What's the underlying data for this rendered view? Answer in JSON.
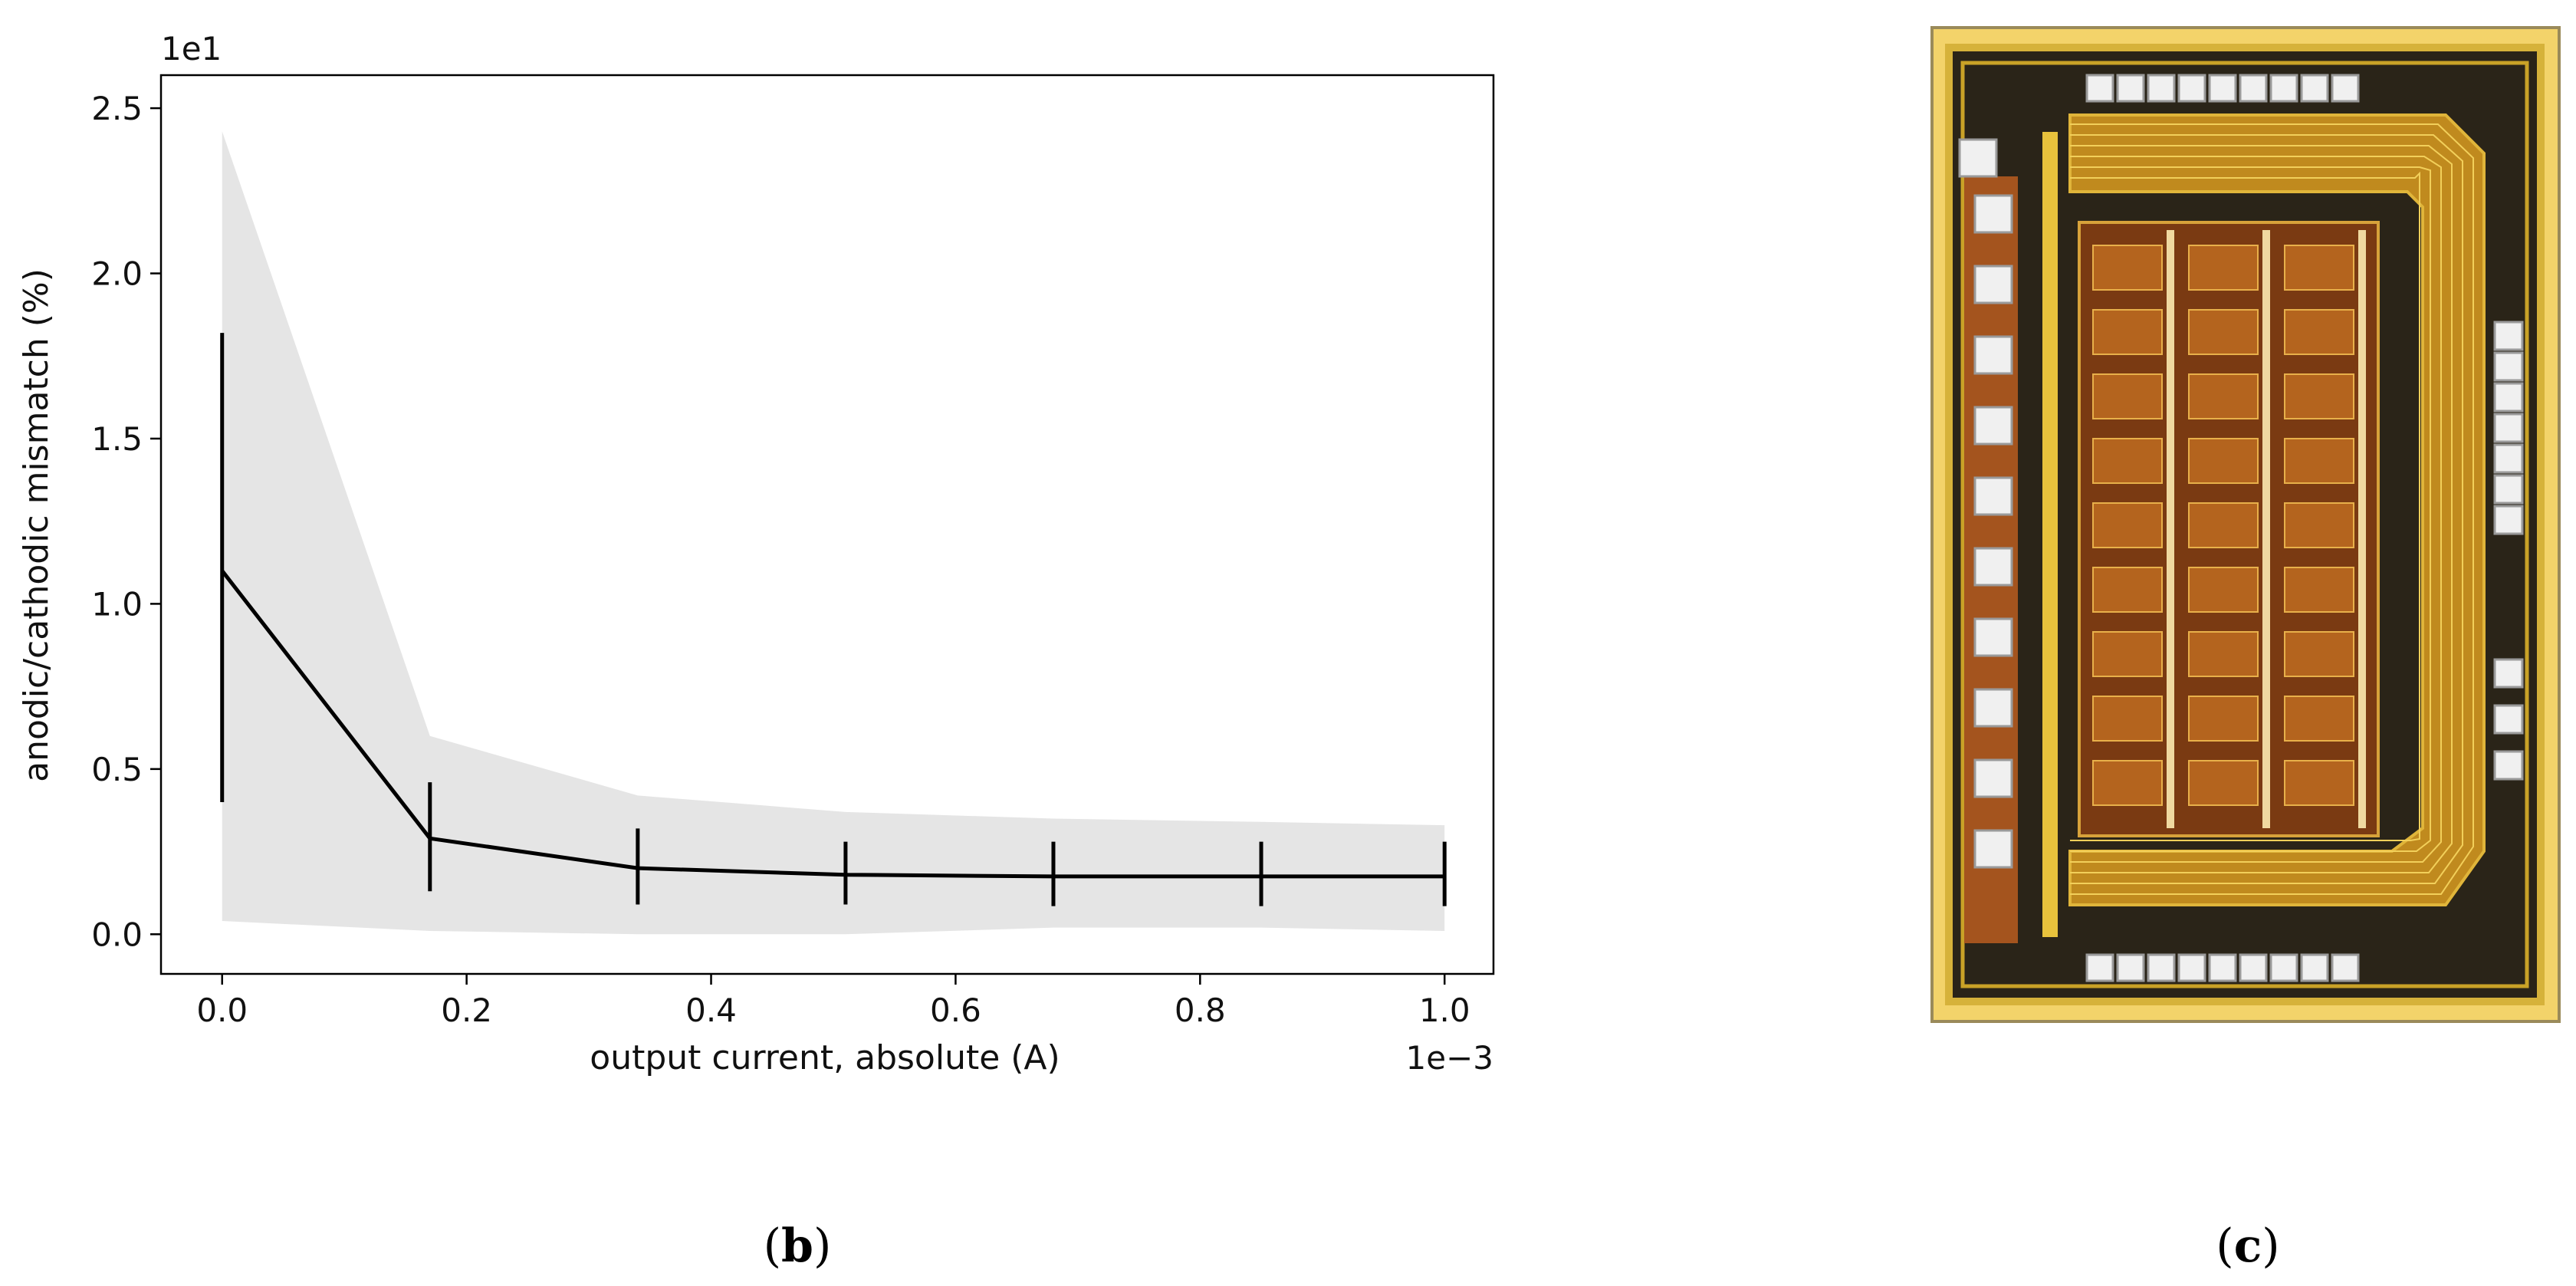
{
  "chart_data": {
    "type": "line",
    "title": "",
    "xlabel": "output current, absolute (A)",
    "ylabel": "anodic/cathodic mismatch (%)",
    "x_offset_text": "1e−3",
    "y_offset_text": "1e1",
    "xlim": [
      -0.05,
      1.04
    ],
    "ylim": [
      -0.12,
      2.6
    ],
    "x_ticks": [
      0.0,
      0.2,
      0.4,
      0.6,
      0.8,
      1.0
    ],
    "x_tick_labels": [
      "0.0",
      "0.2",
      "0.4",
      "0.6",
      "0.8",
      "1.0"
    ],
    "y_ticks": [
      0.0,
      0.5,
      1.0,
      1.5,
      2.0,
      2.5
    ],
    "y_tick_labels": [
      "0.0",
      "0.5",
      "1.0",
      "1.5",
      "2.0",
      "2.5"
    ],
    "grid": false,
    "series": [
      {
        "x": [
          0.0,
          0.17,
          0.34,
          0.51,
          0.68,
          0.85,
          1.0
        ],
        "y": [
          1.1,
          0.29,
          0.2,
          0.18,
          0.175,
          0.175,
          0.175
        ],
        "err_low": [
          0.4,
          0.13,
          0.09,
          0.09,
          0.085,
          0.085,
          0.085
        ],
        "err_high": [
          1.82,
          0.46,
          0.32,
          0.28,
          0.28,
          0.28,
          0.28
        ],
        "band_low": [
          0.04,
          0.01,
          0.0,
          0.0,
          0.02,
          0.02,
          0.01
        ],
        "band_high": [
          2.43,
          0.6,
          0.42,
          0.37,
          0.35,
          0.34,
          0.33
        ],
        "color": "#000000",
        "band_color": "#e5e5e5"
      }
    ]
  },
  "captions": {
    "b": {
      "open": "(",
      "letter": "b",
      "close": ")"
    },
    "c": {
      "open": "(",
      "letter": "c",
      "close": ")"
    }
  },
  "chip_photo": {
    "frame_color": "#c9a227",
    "core_color": "#7a3a12",
    "pad_color": "#f0f0f0"
  }
}
